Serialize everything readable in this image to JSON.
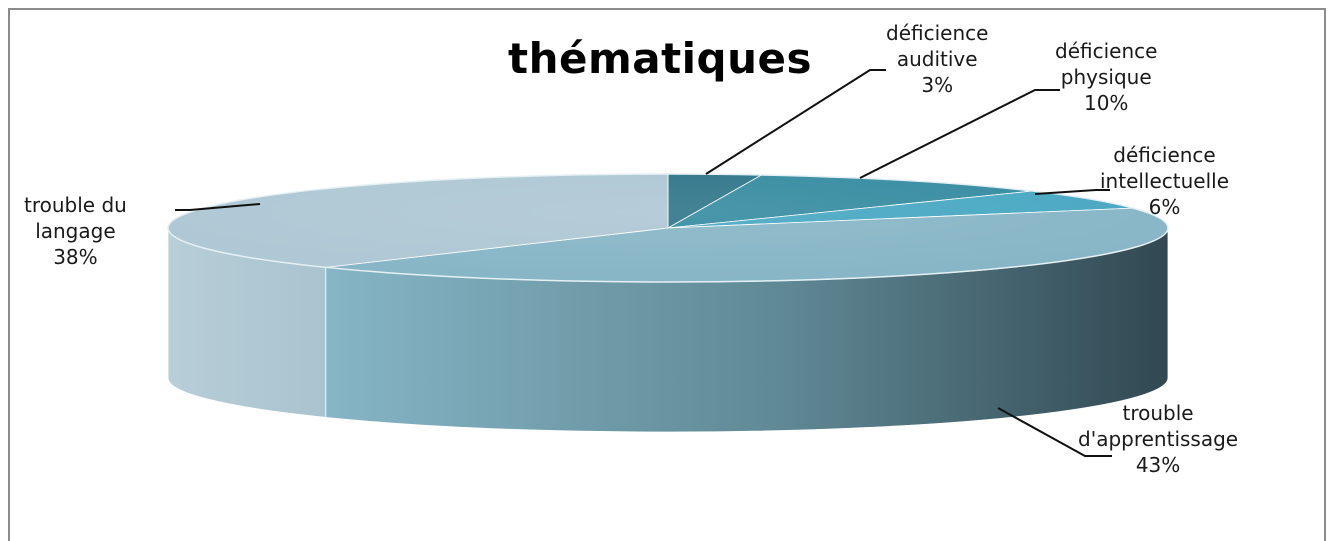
{
  "chart_data": {
    "type": "pie",
    "title": "thématiques",
    "three_d": true,
    "slices": [
      {
        "label_lines": [
          "déficience",
          "auditive"
        ],
        "percent_label": "3%",
        "value": 3,
        "color": "#2f7589"
      },
      {
        "label_lines": [
          "déficience",
          "physique"
        ],
        "percent_label": "10%",
        "value": 10,
        "color": "#358ba0"
      },
      {
        "label_lines": [
          "déficience",
          "intellectuelle"
        ],
        "percent_label": "6%",
        "value": 6,
        "color": "#47a7c2"
      },
      {
        "label_lines": [
          "trouble",
          "d'apprentissage"
        ],
        "percent_label": "43%",
        "value": 43,
        "color": "#86b5c6"
      },
      {
        "label_lines": [
          "trouble du",
          "langage"
        ],
        "percent_label": "38%",
        "value": 38,
        "color": "#aec7d4"
      }
    ]
  }
}
